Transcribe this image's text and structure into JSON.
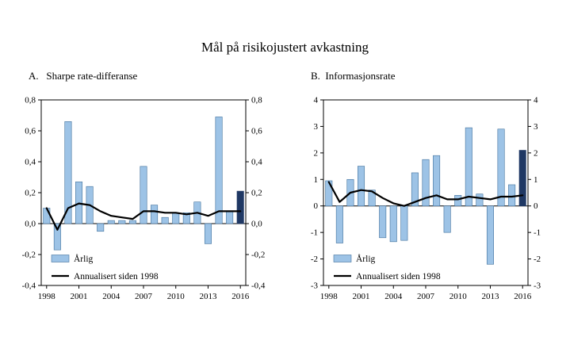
{
  "title": "Mål på risikojustert avkastning",
  "legend": {
    "annual_label": "Årlig",
    "annualized_label": "Annualisert siden 1998"
  },
  "colors": {
    "bar": "#9DC3E6",
    "bar_stroke": "#41719C",
    "bar_last": "#1F3864",
    "line": "#000000",
    "axis": "#000000"
  },
  "chart_data": [
    {
      "type": "bar",
      "panel_label": "A.   Sharpe rate-differanse",
      "x": [
        1998,
        1999,
        2000,
        2001,
        2002,
        2003,
        2004,
        2005,
        2006,
        2007,
        2008,
        2009,
        2010,
        2011,
        2012,
        2013,
        2014,
        2015,
        2016
      ],
      "xticks": [
        1998,
        2001,
        2004,
        2007,
        2010,
        2013,
        2016
      ],
      "xtick_labels": [
        "1998",
        "2001",
        "2004",
        "2007",
        "2010",
        "2013",
        "2016"
      ],
      "ylim": [
        -0.4,
        0.8
      ],
      "yticks": [
        0.8,
        0.6,
        0.4,
        0.2,
        0.0,
        -0.2,
        -0.4
      ],
      "ytick_labels": [
        "0,8",
        "0,6",
        "0,4",
        "0,2",
        "0,0",
        "-0,2",
        "-0,4"
      ],
      "highlight_last_bar": true,
      "legend_position": "bottom-left",
      "series": [
        {
          "name": "Årlig",
          "type": "bar",
          "values": [
            0.1,
            -0.17,
            0.66,
            0.27,
            0.24,
            -0.05,
            0.02,
            0.02,
            0.02,
            0.37,
            0.12,
            0.04,
            0.07,
            0.07,
            0.14,
            -0.13,
            0.69,
            0.08,
            0.21
          ]
        },
        {
          "name": "Annualisert siden 1998",
          "type": "line",
          "values": [
            0.1,
            -0.04,
            0.1,
            0.13,
            0.12,
            0.08,
            0.05,
            0.04,
            0.03,
            0.08,
            0.08,
            0.07,
            0.07,
            0.06,
            0.07,
            0.05,
            0.08,
            0.08,
            0.08
          ]
        }
      ]
    },
    {
      "type": "bar",
      "panel_label": "B.  Informasjonsrate",
      "x": [
        1998,
        1999,
        2000,
        2001,
        2002,
        2003,
        2004,
        2005,
        2006,
        2007,
        2008,
        2009,
        2010,
        2011,
        2012,
        2013,
        2014,
        2015,
        2016
      ],
      "xticks": [
        1998,
        2001,
        2004,
        2007,
        2010,
        2013,
        2016
      ],
      "xtick_labels": [
        "1998",
        "2001",
        "2004",
        "2007",
        "2010",
        "2013",
        "2016"
      ],
      "ylim": [
        -3,
        4
      ],
      "yticks": [
        4,
        3,
        2,
        1,
        0,
        -1,
        -2,
        -3
      ],
      "ytick_labels": [
        "4",
        "3",
        "2",
        "1",
        "0",
        "-1",
        "-2",
        "-3"
      ],
      "highlight_last_bar": true,
      "legend_position": "bottom-left",
      "series": [
        {
          "name": "Årlig",
          "type": "bar",
          "values": [
            0.95,
            -1.4,
            1.0,
            1.5,
            0.6,
            -1.2,
            -1.35,
            -1.3,
            1.25,
            1.75,
            1.9,
            -1.0,
            0.4,
            2.95,
            0.45,
            -2.2,
            2.9,
            0.8,
            2.1
          ]
        },
        {
          "name": "Annualisert siden 1998",
          "type": "line",
          "values": [
            0.9,
            0.15,
            0.5,
            0.6,
            0.55,
            0.3,
            0.1,
            0.0,
            0.15,
            0.3,
            0.4,
            0.25,
            0.25,
            0.35,
            0.3,
            0.25,
            0.35,
            0.35,
            0.4
          ]
        }
      ]
    }
  ]
}
